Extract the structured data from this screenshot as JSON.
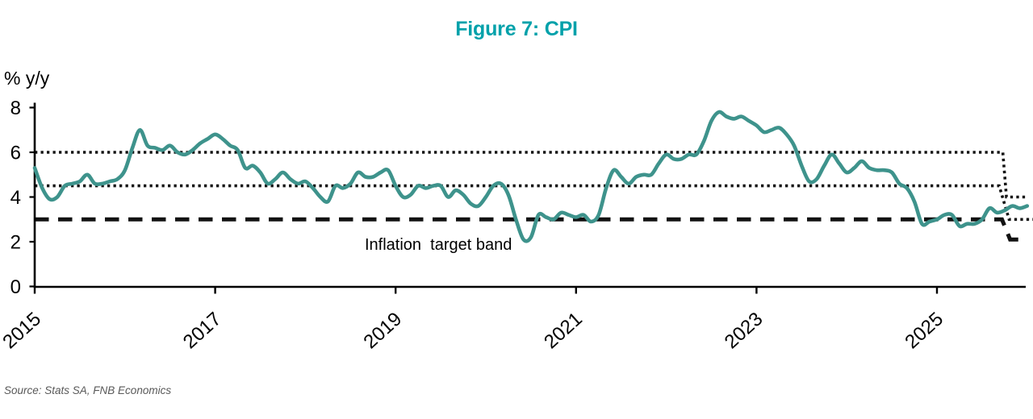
{
  "figure": {
    "title": "Figure 7: CPI",
    "source": "Source: Stats SA, FNB Economics"
  },
  "chart_data": {
    "type": "line",
    "title": "Figure 7: CPI",
    "ylabel": "% y/y",
    "xlabel": "",
    "ylim": [
      0,
      8
    ],
    "yticks": [
      0,
      2,
      4,
      6,
      8
    ],
    "xticks": [
      2015,
      2017,
      2019,
      2021,
      2023,
      2025
    ],
    "grid": false,
    "legend_position": "none",
    "annotation": "Inflation  target band",
    "colors": {
      "line": "#3E938C",
      "title": "#00A1AA",
      "reference": "#121212",
      "source_text": "#595959"
    },
    "series": [
      {
        "name": "CPI (% y/y)",
        "color": "#3E938C",
        "frequency": "monthly",
        "start": "2014-12",
        "end": "2025-12",
        "values": [
          5.3,
          4.4,
          3.9,
          4.0,
          4.5,
          4.6,
          4.7,
          5.0,
          4.6,
          4.6,
          4.7,
          4.8,
          5.2,
          6.2,
          7.0,
          6.3,
          6.2,
          6.1,
          6.3,
          6.0,
          5.9,
          6.1,
          6.4,
          6.6,
          6.8,
          6.6,
          6.3,
          6.1,
          5.3,
          5.4,
          5.1,
          4.6,
          4.8,
          5.1,
          4.8,
          4.6,
          4.7,
          4.4,
          4.0,
          3.8,
          4.5,
          4.4,
          4.6,
          5.1,
          4.9,
          4.9,
          5.1,
          5.2,
          4.5,
          4.0,
          4.1,
          4.5,
          4.4,
          4.5,
          4.5,
          4.0,
          4.3,
          4.1,
          3.7,
          3.6,
          4.0,
          4.5,
          4.6,
          4.1,
          3.0,
          2.1,
          2.2,
          3.2,
          3.1,
          3.0,
          3.3,
          3.2,
          3.1,
          3.2,
          2.9,
          3.2,
          4.4,
          5.2,
          4.9,
          4.6,
          4.9,
          5.0,
          5.0,
          5.5,
          5.9,
          5.7,
          5.7,
          5.9,
          5.9,
          6.5,
          7.4,
          7.8,
          7.6,
          7.5,
          7.6,
          7.4,
          7.2,
          6.9,
          7.0,
          7.1,
          6.8,
          6.3,
          5.4,
          4.7,
          4.8,
          5.4,
          5.9,
          5.5,
          5.1,
          5.3,
          5.6,
          5.3,
          5.2,
          5.2,
          5.1,
          4.6,
          4.4,
          3.8,
          2.8,
          2.9,
          3.0,
          3.2,
          3.2,
          2.7,
          2.8,
          2.8,
          3.0,
          3.5,
          3.3,
          3.4,
          3.6,
          3.5,
          3.6
        ]
      }
    ],
    "reference_lines": [
      {
        "name": "inflation-target-upper-bound",
        "style": "dotted",
        "points": [
          [
            2015.0,
            6.0
          ],
          [
            2025.73,
            6.0
          ],
          [
            2025.77,
            4.0
          ],
          [
            2026.0,
            4.0
          ]
        ]
      },
      {
        "name": "inflation-target-midpoint",
        "style": "dotted",
        "points": [
          [
            2015.0,
            4.5
          ],
          [
            2025.69,
            4.5
          ],
          [
            2025.8,
            3.0
          ],
          [
            2026.07,
            3.0
          ]
        ]
      },
      {
        "name": "inflation-target-lower-bound",
        "style": "dashed",
        "points": [
          [
            2015.0,
            3.0
          ],
          [
            2025.72,
            3.0
          ],
          [
            2025.81,
            2.1
          ],
          [
            2025.92,
            2.1
          ]
        ]
      }
    ]
  }
}
